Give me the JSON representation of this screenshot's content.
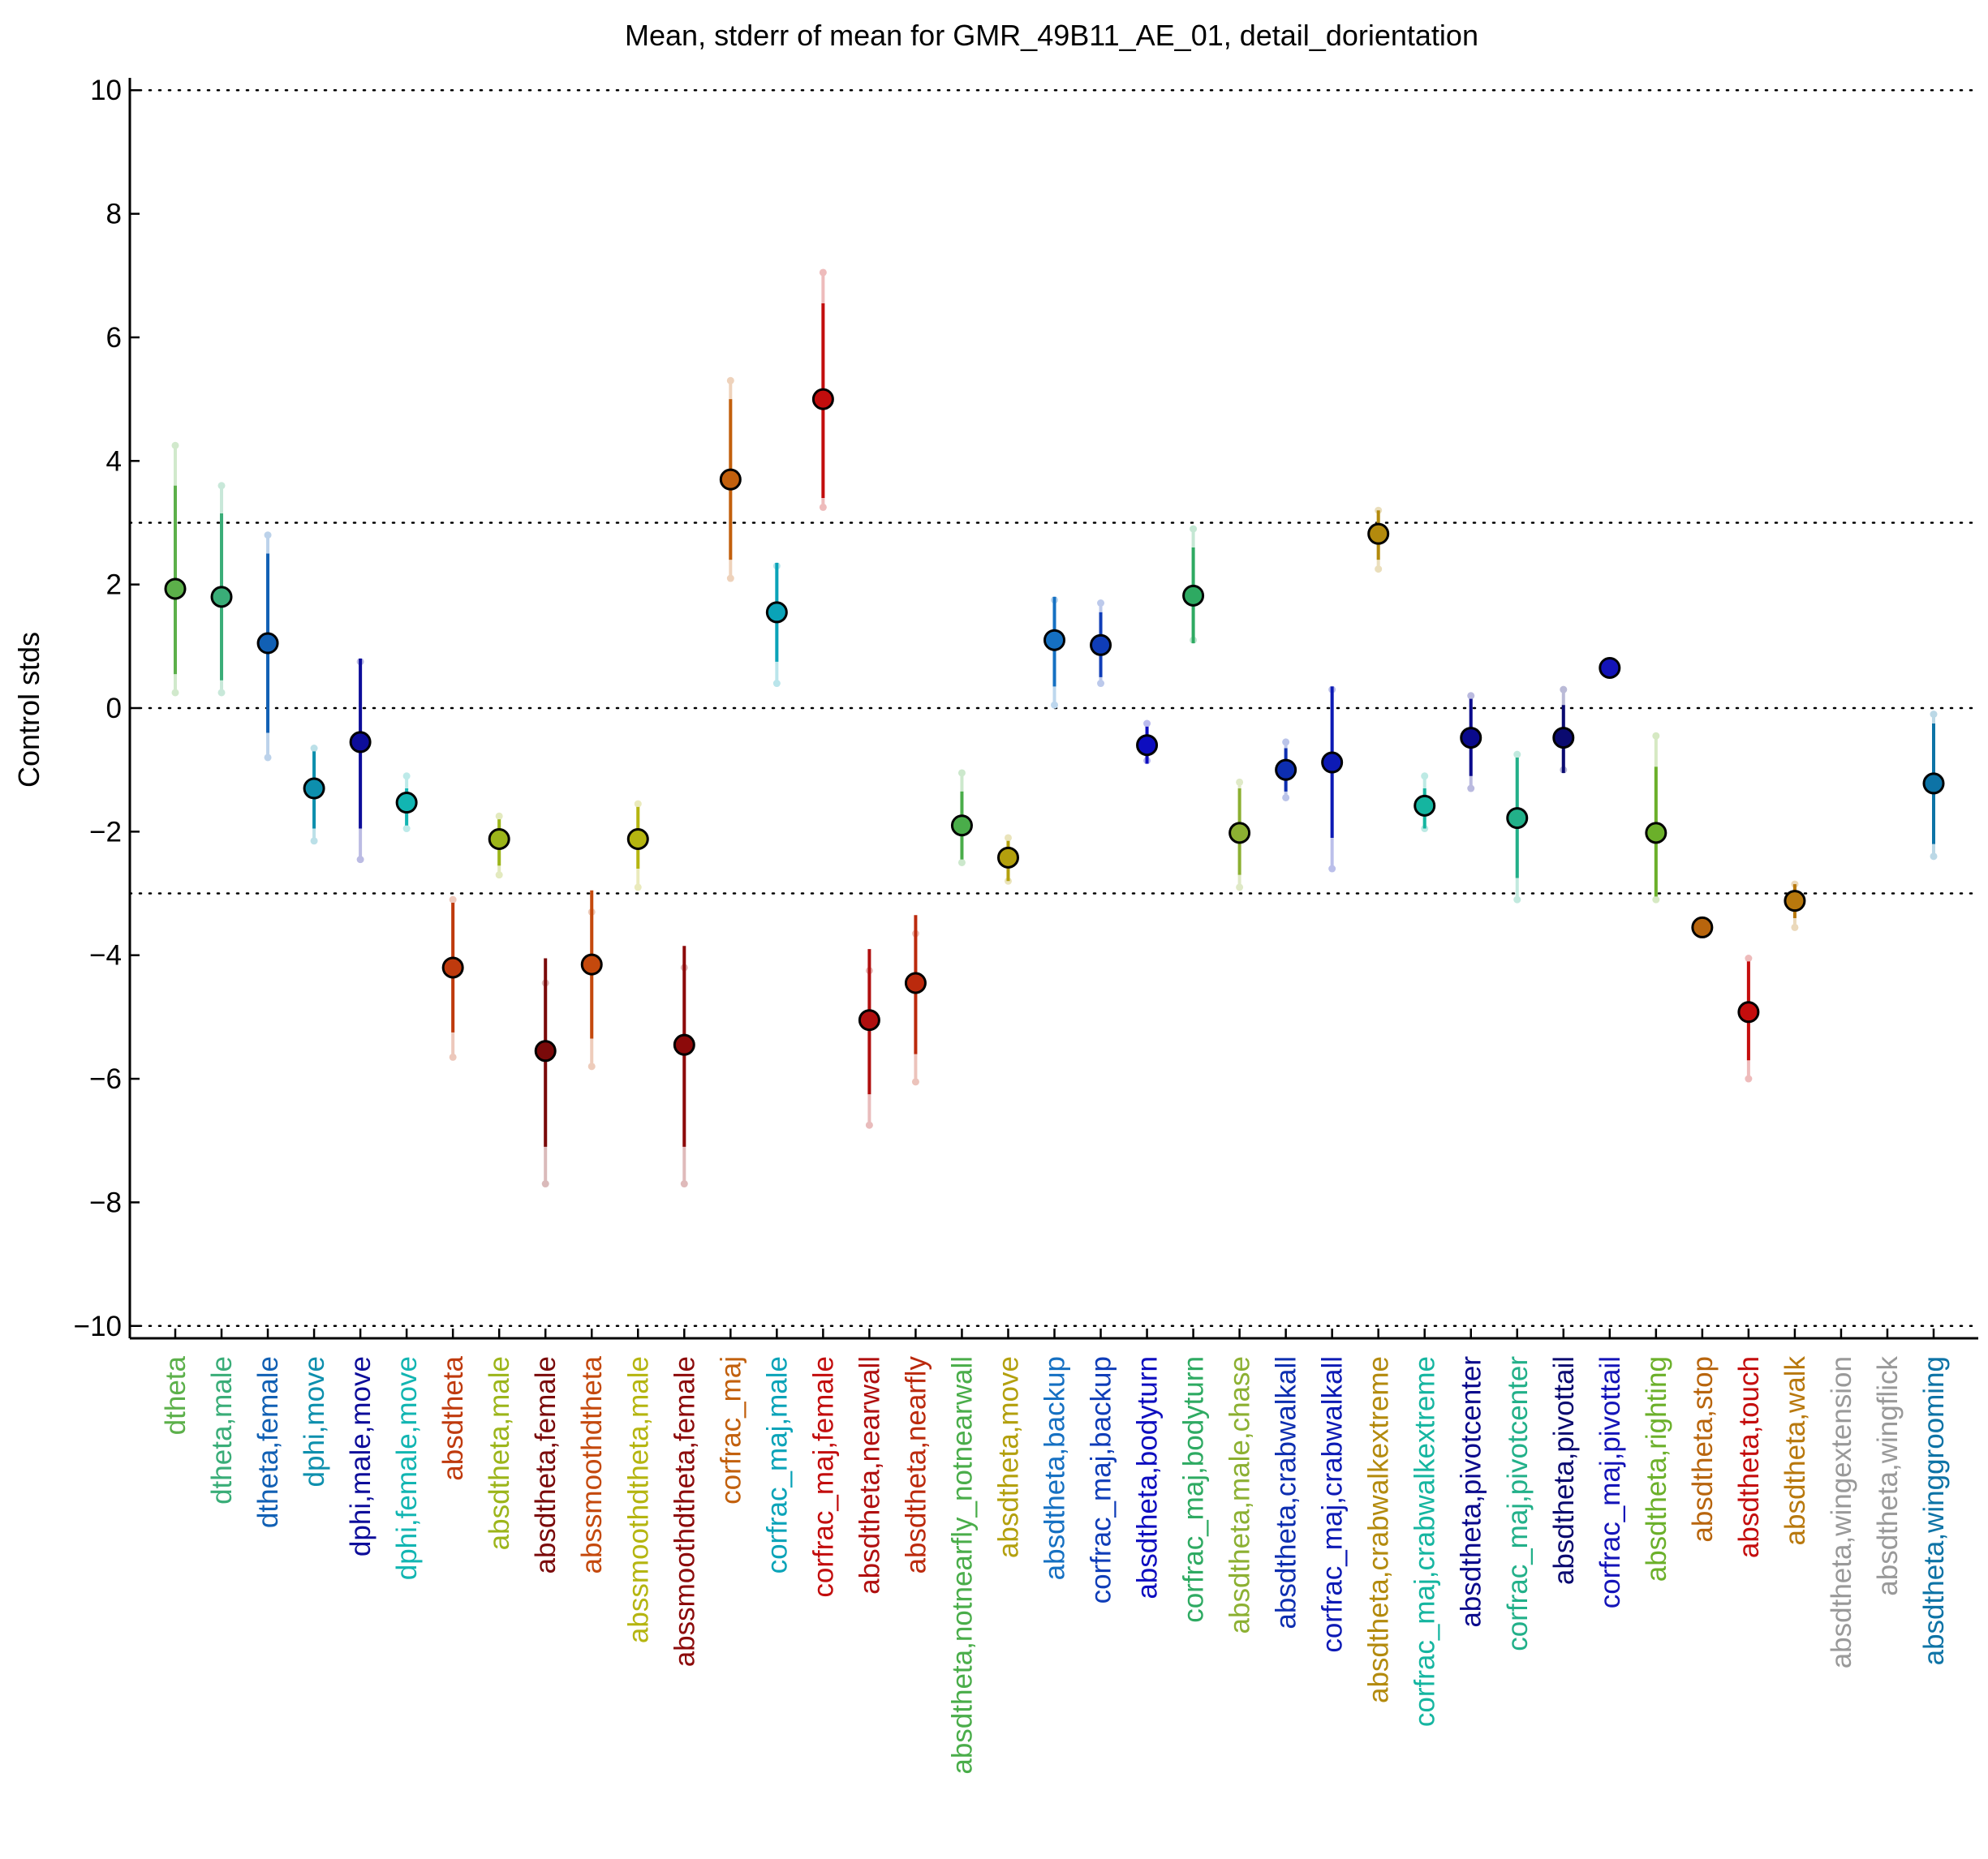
{
  "chart_data": {
    "type": "scatter",
    "title": "Mean, stderr of mean for GMR_49B11_AE_01, detail_dorientation",
    "ylabel": "Control stds",
    "xlabel": "",
    "ylim": [
      -10.2,
      10.2
    ],
    "yticks": [
      10,
      8,
      6,
      4,
      2,
      0,
      -2,
      -4,
      -6,
      -8,
      -10
    ],
    "ytick_labels": [
      "10",
      "8",
      "6",
      "4",
      "2",
      "0",
      "−2",
      "−4",
      "−6",
      "−8",
      "−10"
    ],
    "reference_lines": [
      10,
      3,
      0,
      -3,
      -10
    ],
    "grid": false,
    "points": [
      {
        "label": "dtheta",
        "color": "#5cb04a",
        "mean": 1.93,
        "inner": [
          0.55,
          3.6
        ],
        "outer": [
          0.25,
          4.25
        ]
      },
      {
        "label": "dtheta,male",
        "color": "#3aad78",
        "mean": 1.8,
        "inner": [
          0.45,
          3.15
        ],
        "outer": [
          0.25,
          3.6
        ]
      },
      {
        "label": "dtheta,female",
        "color": "#1160b4",
        "mean": 1.05,
        "inner": [
          -0.4,
          2.5
        ],
        "outer": [
          -0.8,
          2.8
        ]
      },
      {
        "label": "dphi,move",
        "color": "#0d8fad",
        "mean": -1.3,
        "inner": [
          -1.95,
          -0.7
        ],
        "outer": [
          -2.15,
          -0.65
        ]
      },
      {
        "label": "dphi,male,move",
        "color": "#0d0d9a",
        "mean": -0.55,
        "inner": [
          -1.95,
          0.8
        ],
        "outer": [
          -2.45,
          0.75
        ]
      },
      {
        "label": "dphi,female,move",
        "color": "#12b5b2",
        "mean": -1.53,
        "inner": [
          -1.9,
          -1.3
        ],
        "outer": [
          -1.95,
          -1.1
        ]
      },
      {
        "label": "absdtheta",
        "color": "#bf3a0d",
        "mean": -4.2,
        "inner": [
          -5.25,
          -3.15
        ],
        "outer": [
          -5.65,
          -3.1
        ]
      },
      {
        "label": "absdtheta,male",
        "color": "#9cb51a",
        "mean": -2.12,
        "inner": [
          -2.55,
          -1.8
        ],
        "outer": [
          -2.7,
          -1.75
        ]
      },
      {
        "label": "absdtheta,female",
        "color": "#7a0a0a",
        "mean": -5.55,
        "inner": [
          -7.1,
          -4.05
        ],
        "outer": [
          -7.7,
          -4.45
        ]
      },
      {
        "label": "abssmoothdtheta",
        "color": "#c4490d",
        "mean": -4.15,
        "inner": [
          -5.35,
          -2.95
        ],
        "outer": [
          -5.8,
          -3.3
        ]
      },
      {
        "label": "abssmoothdtheta,male",
        "color": "#b5b510",
        "mean": -2.12,
        "inner": [
          -2.6,
          -1.6
        ],
        "outer": [
          -2.9,
          -1.55
        ]
      },
      {
        "label": "abssmoothdtheta,female",
        "color": "#8c0a0a",
        "mean": -5.45,
        "inner": [
          -7.1,
          -3.85
        ],
        "outer": [
          -7.7,
          -4.2
        ]
      },
      {
        "label": "corfrac_maj",
        "color": "#c2600d",
        "mean": 3.7,
        "inner": [
          2.4,
          5.0
        ],
        "outer": [
          2.1,
          5.3
        ]
      },
      {
        "label": "corfrac_maj,male",
        "color": "#0aa3b8",
        "mean": 1.55,
        "inner": [
          0.75,
          2.35
        ],
        "outer": [
          0.4,
          2.3
        ]
      },
      {
        "label": "corfrac_maj,female",
        "color": "#c20d0d",
        "mean": 5.0,
        "inner": [
          3.4,
          6.55
        ],
        "outer": [
          3.25,
          7.05
        ]
      },
      {
        "label": "absdtheta,nearwall",
        "color": "#b00f0f",
        "mean": -5.05,
        "inner": [
          -6.25,
          -3.9
        ],
        "outer": [
          -6.75,
          -4.25
        ]
      },
      {
        "label": "absdtheta,nearfly",
        "color": "#bb2a0d",
        "mean": -4.45,
        "inner": [
          -5.6,
          -3.35
        ],
        "outer": [
          -6.05,
          -3.65
        ]
      },
      {
        "label": "absdtheta,notnearfly_notnearwall",
        "color": "#4aad4a",
        "mean": -1.9,
        "inner": [
          -2.45,
          -1.35
        ],
        "outer": [
          -2.5,
          -1.05
        ]
      },
      {
        "label": "absdtheta,move",
        "color": "#b3a00d",
        "mean": -2.42,
        "inner": [
          -2.8,
          -2.15
        ],
        "outer": [
          -2.8,
          -2.1
        ]
      },
      {
        "label": "absdtheta,backup",
        "color": "#1570c2",
        "mean": 1.1,
        "inner": [
          0.35,
          1.8
        ],
        "outer": [
          0.05,
          1.75
        ]
      },
      {
        "label": "corfrac_maj,backup",
        "color": "#0f3db8",
        "mean": 1.02,
        "inner": [
          0.5,
          1.55
        ],
        "outer": [
          0.4,
          1.7
        ]
      },
      {
        "label": "absdtheta,bodyturn",
        "color": "#0d0dbf",
        "mean": -0.6,
        "inner": [
          -0.9,
          -0.3
        ],
        "outer": [
          -0.85,
          -0.25
        ]
      },
      {
        "label": "corfrac_maj,bodyturn",
        "color": "#2eaa62",
        "mean": 1.82,
        "inner": [
          1.05,
          2.6
        ],
        "outer": [
          1.1,
          2.9
        ]
      },
      {
        "label": "absdtheta,male,chase",
        "color": "#8cb032",
        "mean": -2.02,
        "inner": [
          -2.7,
          -1.3
        ],
        "outer": [
          -2.9,
          -1.2
        ]
      },
      {
        "label": "absdtheta,crabwalkall",
        "color": "#0d2eb0",
        "mean": -1.0,
        "inner": [
          -1.35,
          -0.65
        ],
        "outer": [
          -1.45,
          -0.55
        ]
      },
      {
        "label": "corfrac_maj,crabwalkall",
        "color": "#0d1ab5",
        "mean": -0.88,
        "inner": [
          -2.1,
          0.35
        ],
        "outer": [
          -2.6,
          0.3
        ]
      },
      {
        "label": "absdtheta,crabwalkextreme",
        "color": "#b38a0d",
        "mean": 2.82,
        "inner": [
          2.4,
          3.2
        ],
        "outer": [
          2.25,
          3.2
        ]
      },
      {
        "label": "corfrac_maj,crabwalkextreme",
        "color": "#15b5a0",
        "mean": -1.58,
        "inner": [
          -1.95,
          -1.3
        ],
        "outer": [
          -1.95,
          -1.1
        ]
      },
      {
        "label": "absdtheta,pivotcenter",
        "color": "#0a0a8c",
        "mean": -0.48,
        "inner": [
          -1.1,
          0.15
        ],
        "outer": [
          -1.3,
          0.2
        ]
      },
      {
        "label": "corfrac_maj,pivotcenter",
        "color": "#22b089",
        "mean": -1.78,
        "inner": [
          -2.75,
          -0.8
        ],
        "outer": [
          -3.1,
          -0.75
        ]
      },
      {
        "label": "absdtheta,pivottail",
        "color": "#0a0a70",
        "mean": -0.48,
        "inner": [
          -1.05,
          0.05
        ],
        "outer": [
          -1.0,
          0.3
        ]
      },
      {
        "label": "corfrac_maj,pivottail",
        "color": "#1414b8",
        "mean": 0.65,
        "inner": [
          0.65,
          0.65
        ],
        "outer": [
          0.65,
          0.65
        ]
      },
      {
        "label": "absdtheta,righting",
        "color": "#6bb02a",
        "mean": -2.02,
        "inner": [
          -3.05,
          -0.95
        ],
        "outer": [
          -3.1,
          -0.45
        ]
      },
      {
        "label": "absdtheta,stop",
        "color": "#b8650d",
        "mean": -3.55,
        "inner": [
          -3.55,
          -3.55
        ],
        "outer": [
          -3.55,
          -3.55
        ]
      },
      {
        "label": "absdtheta,touch",
        "color": "#c40d0d",
        "mean": -4.92,
        "inner": [
          -5.7,
          -4.1
        ],
        "outer": [
          -6.0,
          -4.05
        ]
      },
      {
        "label": "absdtheta,walk",
        "color": "#b8780d",
        "mean": -3.12,
        "inner": [
          -3.4,
          -2.85
        ],
        "outer": [
          -3.55,
          -2.85
        ]
      },
      {
        "label": "absdtheta,wingextension",
        "color": "#999999",
        "mean": null,
        "inner": null,
        "outer": null
      },
      {
        "label": "absdtheta,wingflick",
        "color": "#999999",
        "mean": null,
        "inner": null,
        "outer": null
      },
      {
        "label": "absdtheta,winggrooming",
        "color": "#0d73a6",
        "mean": -1.22,
        "inner": [
          -2.2,
          -0.25
        ],
        "outer": [
          -2.4,
          -0.1
        ]
      }
    ]
  }
}
